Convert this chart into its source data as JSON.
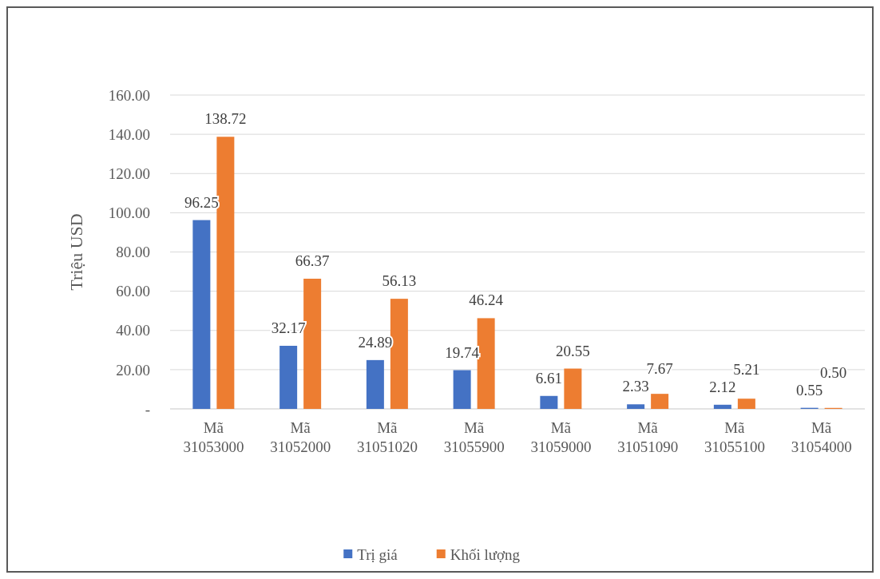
{
  "chart_data": {
    "type": "bar",
    "ylabel": "Triệu USD",
    "categories": [
      "Mã 31053000",
      "Mã 31052000",
      "Mã 31051020",
      "Mã 31055900",
      "Mã 31059000",
      "Mã 31051090",
      "Mã 31055100",
      "Mã 31054000"
    ],
    "series": [
      {
        "name": "Trị giá",
        "color": "#4472c4",
        "values": [
          96.25,
          32.17,
          24.89,
          19.74,
          6.61,
          2.33,
          2.12,
          0.55
        ],
        "value_labels": [
          "96.25",
          "32.17",
          "24.89",
          "19.74",
          "6.61",
          "2.33",
          "2.12",
          "0.55"
        ]
      },
      {
        "name": "Khối lượng",
        "color": "#ed7d31",
        "values": [
          138.72,
          66.37,
          56.13,
          46.24,
          20.55,
          7.67,
          5.21,
          0.5
        ],
        "value_labels": [
          "138.72",
          "66.37",
          "56.13",
          "46.24",
          "20.55",
          "7.67",
          "5.21",
          "0.50"
        ]
      }
    ],
    "ylim": [
      0,
      160
    ],
    "yticks": [
      {
        "value": 0,
        "label": "-"
      },
      {
        "value": 20,
        "label": "20.00"
      },
      {
        "value": 40,
        "label": "40.00"
      },
      {
        "value": 60,
        "label": "60.00"
      },
      {
        "value": 80,
        "label": "80.00"
      },
      {
        "value": 100,
        "label": "100.00"
      },
      {
        "value": 120,
        "label": "120.00"
      },
      {
        "value": 140,
        "label": "140.00"
      },
      {
        "value": 160,
        "label": "160.00"
      }
    ],
    "grid": "y",
    "legend": "bottom"
  }
}
